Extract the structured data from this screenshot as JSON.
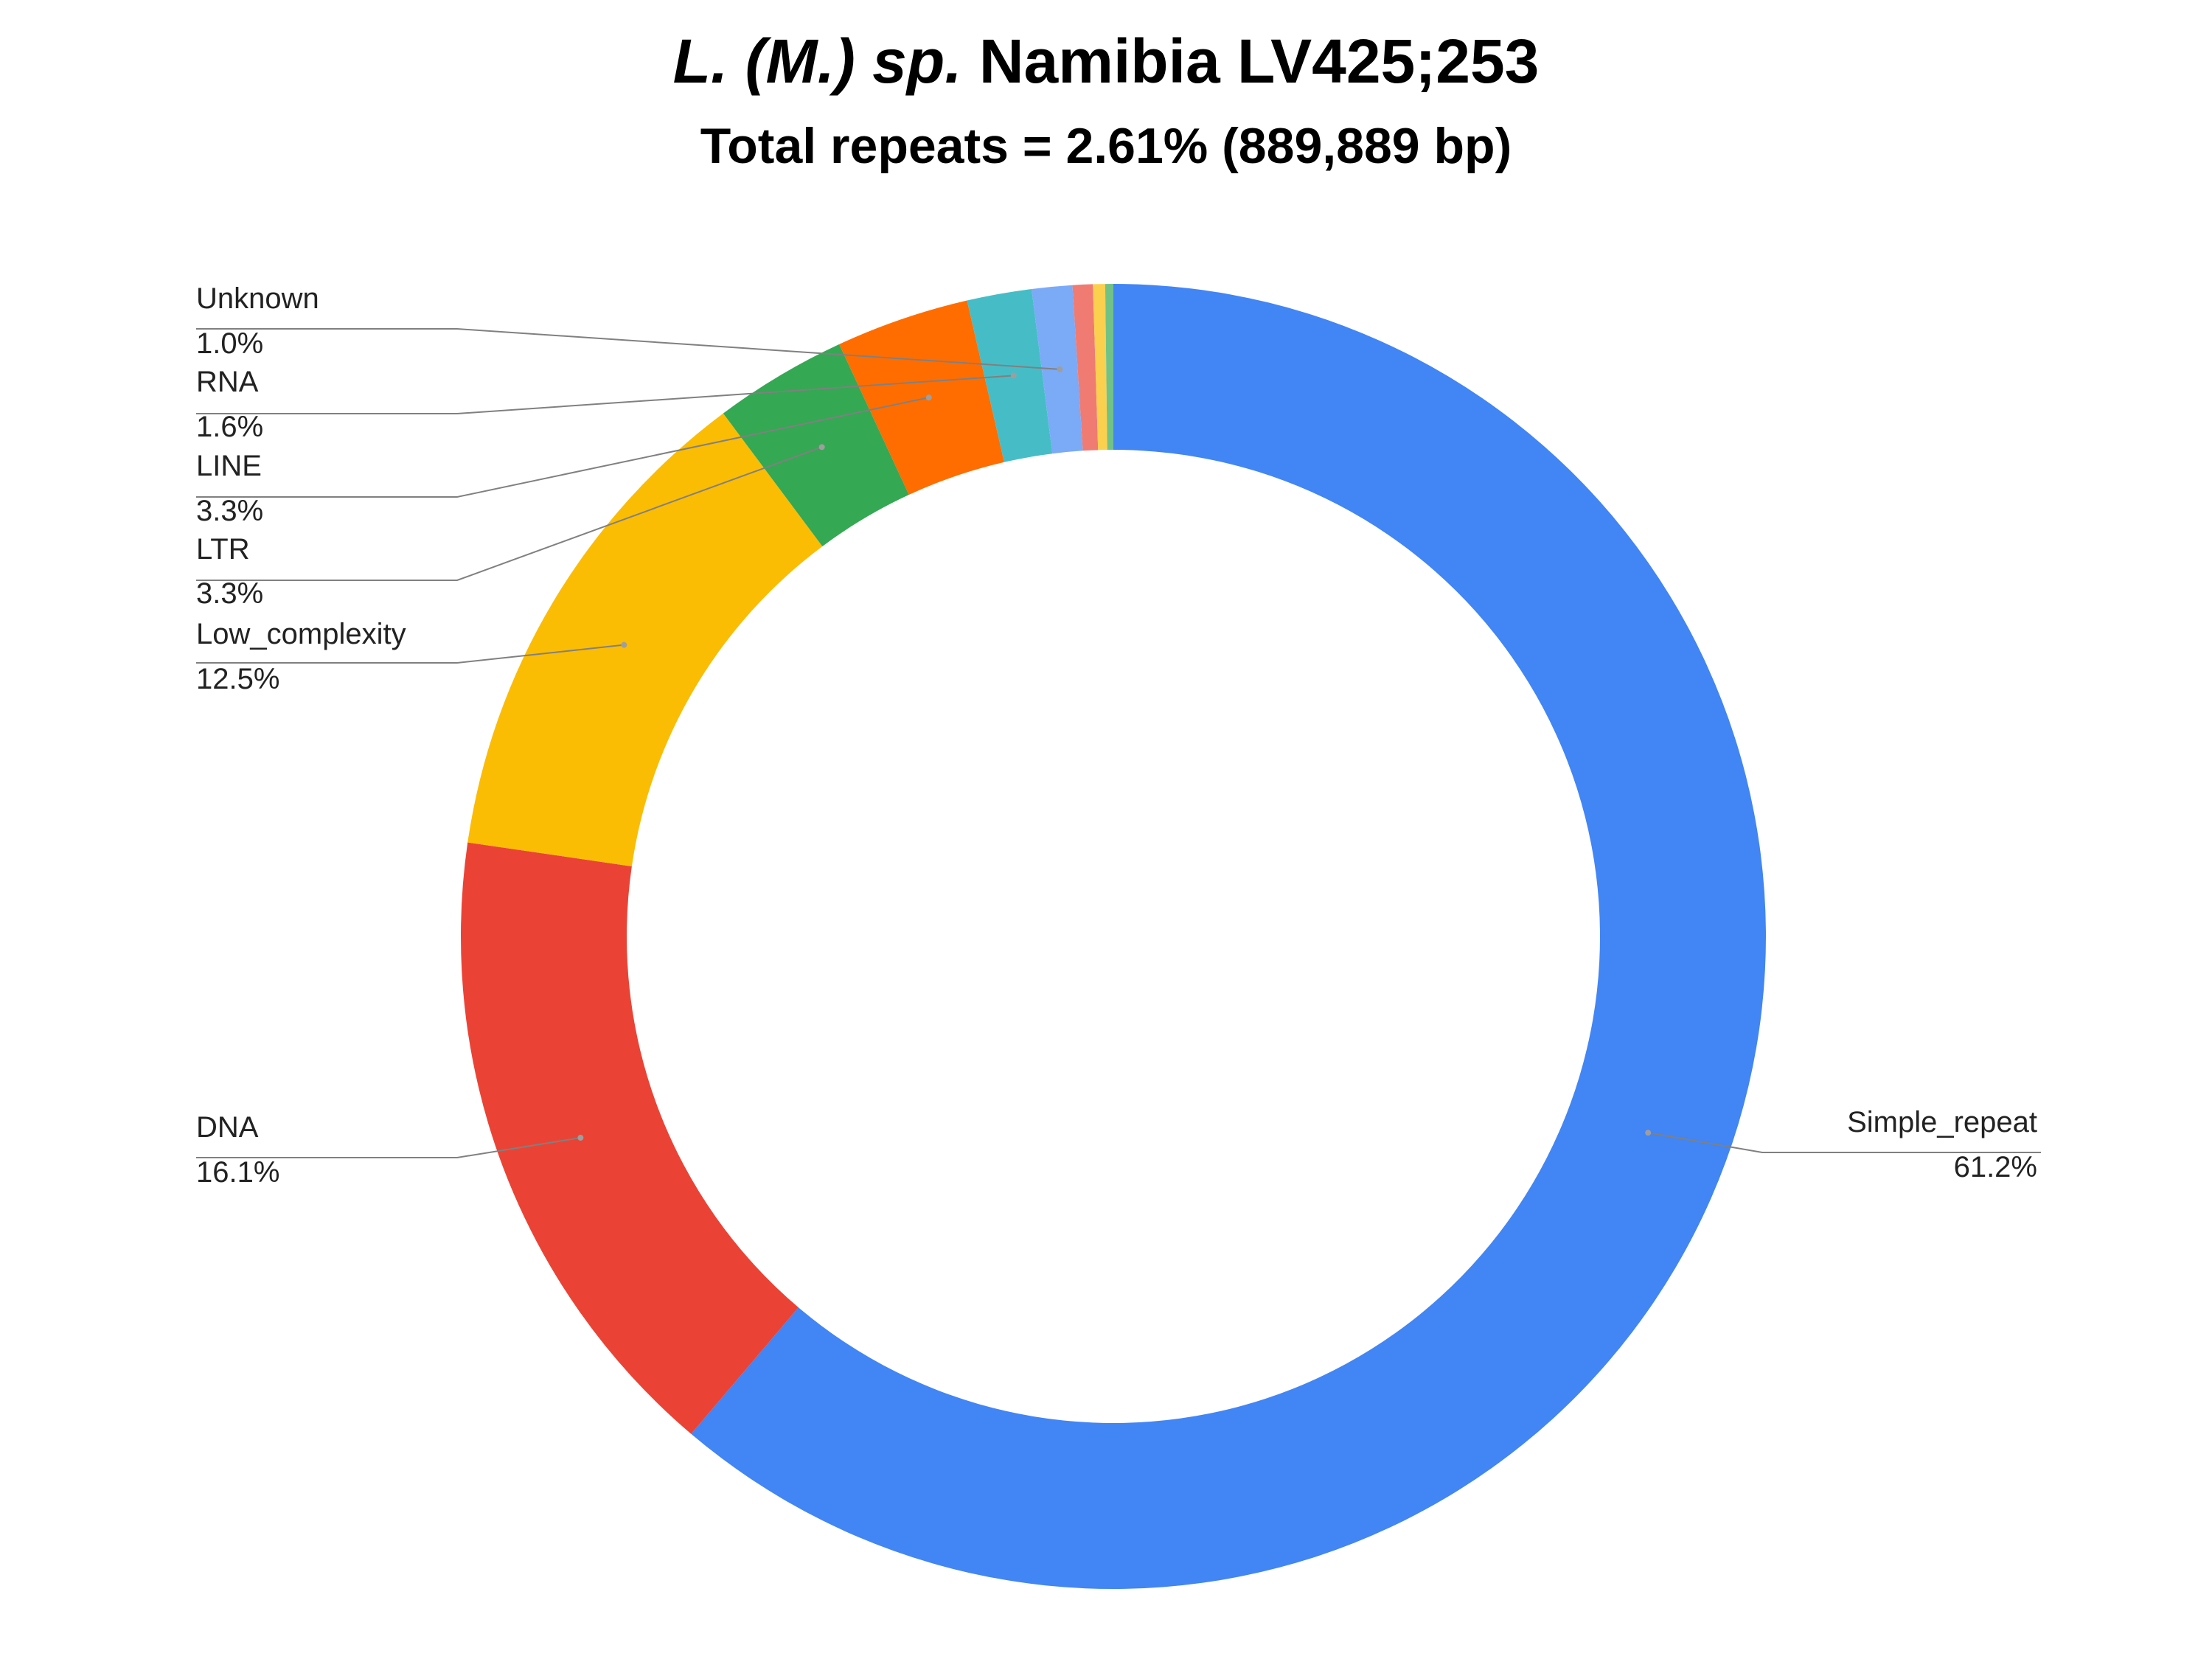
{
  "title": {
    "italic": "L. (M.) sp.",
    "plain": "Namibia LV425;253"
  },
  "subtitle": "Total repeats = 2.61% (889,889 bp)",
  "chart_data": {
    "type": "pie",
    "donut": true,
    "slices": [
      {
        "label": "Simple_repeat",
        "value": 61.2,
        "value_label": "61.2%",
        "color": "#4285F4",
        "labeled": true
      },
      {
        "label": "DNA",
        "value": 16.1,
        "value_label": "16.1%",
        "color": "#EA4335",
        "labeled": true
      },
      {
        "label": "Low_complexity",
        "value": 12.5,
        "value_label": "12.5%",
        "color": "#FBBC04",
        "labeled": true
      },
      {
        "label": "LTR",
        "value": 3.3,
        "value_label": "3.3%",
        "color": "#34A853",
        "labeled": true
      },
      {
        "label": "LINE",
        "value": 3.3,
        "value_label": "3.3%",
        "color": "#FF6D01",
        "labeled": true
      },
      {
        "label": "RNA",
        "value": 1.6,
        "value_label": "1.6%",
        "color": "#46BDC6",
        "labeled": true
      },
      {
        "label": "Unknown",
        "value": 1.0,
        "value_label": "1.0%",
        "color": "#7BAAF7",
        "labeled": true
      },
      {
        "label": "",
        "value": 0.5,
        "value_label": "",
        "color": "#F07B72",
        "labeled": false
      },
      {
        "label": "",
        "value": 0.3,
        "value_label": "",
        "color": "#FCD04F",
        "labeled": false
      },
      {
        "label": "",
        "value": 0.2,
        "value_label": "",
        "color": "#71C287",
        "labeled": false
      }
    ]
  }
}
